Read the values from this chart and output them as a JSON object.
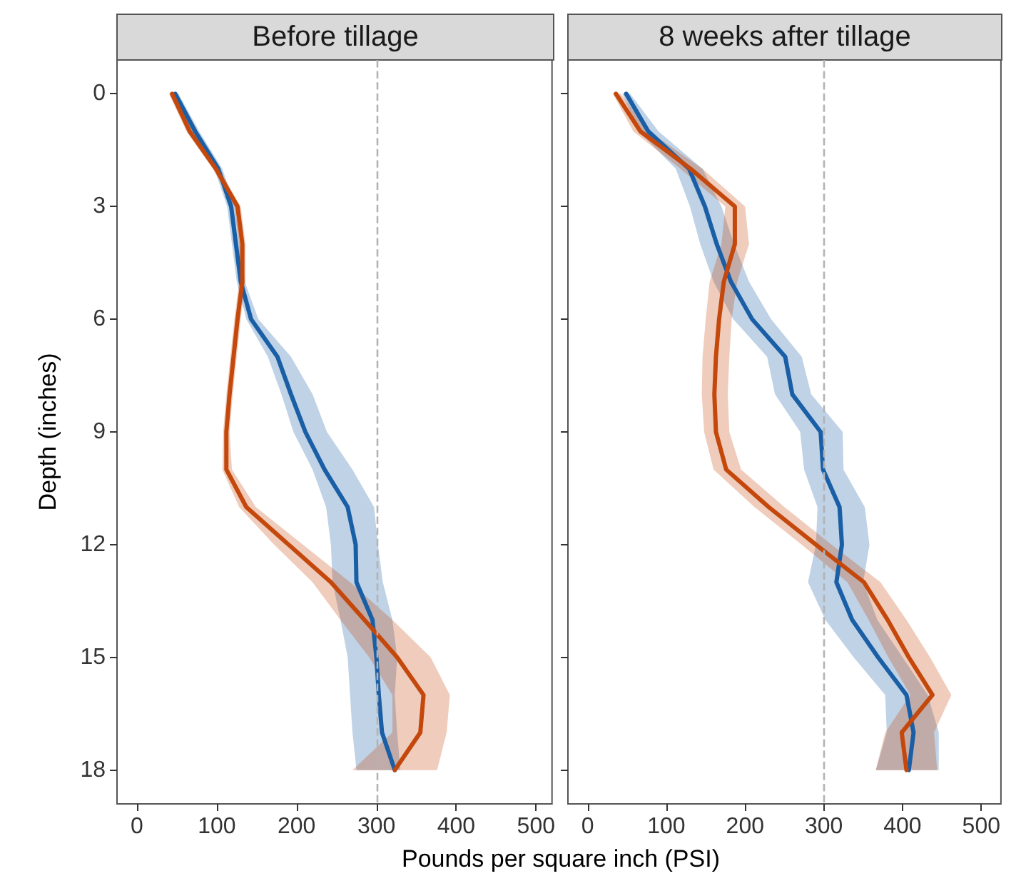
{
  "chart_data": [
    {
      "type": "line",
      "title": "Before tillage",
      "ylabel": "Depth (inches)",
      "xlabel": "Pounds per square inch (PSI)",
      "orientation": "horizontal",
      "x": [
        0,
        1,
        2,
        3,
        4,
        5,
        6,
        7,
        8,
        9,
        10,
        11,
        12,
        13,
        14,
        15,
        16,
        17,
        18
      ],
      "xlim": [
        -25,
        520
      ],
      "xticks": [
        0,
        100,
        200,
        300,
        400,
        500
      ],
      "ylim": [
        18.9,
        -0.9
      ],
      "yticks": [
        0,
        3,
        6,
        9,
        12,
        15,
        18
      ],
      "grid": false,
      "ref_lines": [
        {
          "axis": "x",
          "value": 300,
          "color": "#b3b3b3",
          "line_style": "dashed"
        }
      ],
      "series": [
        {
          "color": "#1a5fa6",
          "values": [
            48,
            73,
            102,
            118,
            124,
            130,
            143,
            176,
            193,
            211,
            235,
            264,
            274,
            275,
            295,
            300,
            303,
            307,
            323
          ],
          "lower": [
            44,
            68,
            97,
            113,
            119,
            125,
            137,
            164,
            181,
            196,
            220,
            237,
            243,
            245,
            255,
            264,
            267,
            270,
            275
          ],
          "upper": [
            52,
            78,
            107,
            123,
            129,
            135,
            152,
            193,
            220,
            238,
            270,
            297,
            302,
            308,
            320,
            326,
            323,
            326,
            330
          ]
        },
        {
          "color": "#c4480c",
          "values": [
            44,
            66,
            99,
            126,
            132,
            132,
            126,
            121,
            116,
            112,
            112,
            137,
            190,
            243,
            285,
            326,
            359,
            355,
            323
          ],
          "lower": [
            40,
            62,
            95,
            122,
            128,
            128,
            122,
            117,
            112,
            108,
            107,
            128,
            172,
            220,
            255,
            291,
            320,
            320,
            270
          ],
          "upper": [
            48,
            70,
            103,
            130,
            136,
            136,
            130,
            125,
            120,
            116,
            119,
            149,
            208,
            267,
            320,
            368,
            392,
            388,
            376
          ]
        }
      ]
    },
    {
      "type": "line",
      "title": "8 weeks after tillage",
      "orientation": "horizontal",
      "x": [
        0,
        1,
        2,
        3,
        4,
        5,
        6,
        7,
        8,
        9,
        10,
        11,
        12,
        13,
        14,
        15,
        16,
        17,
        18
      ],
      "xlim": [
        -25,
        525
      ],
      "xticks": [
        0,
        100,
        200,
        300,
        400,
        500
      ],
      "ylim": [
        18.9,
        -0.9
      ],
      "yticks": [
        0,
        3,
        6,
        9,
        12,
        15,
        18
      ],
      "grid": false,
      "tick_labels": "x",
      "ref_lines": [
        {
          "axis": "x",
          "value": 300,
          "color": "#b3b3b3",
          "line_style": "dashed"
        }
      ],
      "series": [
        {
          "color": "#1a5fa6",
          "values": [
            49,
            77,
            129,
            149,
            164,
            182,
            209,
            251,
            260,
            296,
            299,
            320,
            323,
            316,
            336,
            369,
            405,
            414,
            408
          ],
          "lower": [
            44,
            65,
            112,
            130,
            143,
            160,
            185,
            228,
            238,
            270,
            275,
            292,
            290,
            280,
            302,
            338,
            378,
            380,
            366
          ],
          "upper": [
            54,
            90,
            146,
            170,
            186,
            205,
            233,
            272,
            284,
            324,
            325,
            352,
            358,
            350,
            368,
            400,
            432,
            446,
            446
          ]
        },
        {
          "color": "#c4480c",
          "values": [
            36,
            67,
            131,
            187,
            187,
            173,
            167,
            163,
            161,
            163,
            176,
            230,
            290,
            351,
            381,
            408,
            438,
            399,
            405
          ],
          "lower": [
            32,
            58,
            118,
            175,
            170,
            155,
            150,
            146,
            145,
            148,
            160,
            212,
            272,
            330,
            357,
            382,
            410,
            378,
            366
          ],
          "upper": [
            42,
            78,
            146,
            200,
            205,
            190,
            183,
            180,
            178,
            180,
            195,
            250,
            310,
            372,
            405,
            435,
            462,
            440,
            444
          ]
        }
      ]
    }
  ]
}
